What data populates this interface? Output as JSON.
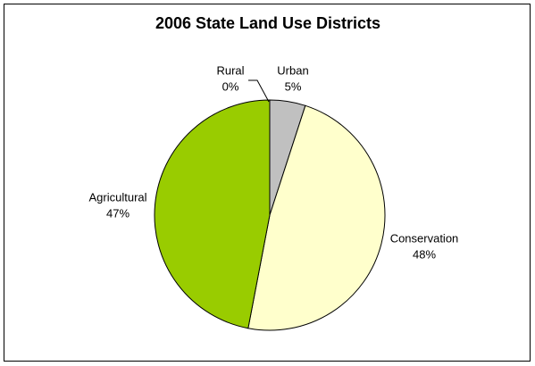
{
  "chart_data": {
    "type": "pie",
    "title": "2006 State Land Use Districts",
    "categories": [
      "Urban",
      "Conservation",
      "Agricultural",
      "Rural"
    ],
    "values": [
      5,
      48,
      47,
      0
    ],
    "value_labels": [
      "5%",
      "48%",
      "47%",
      "0%"
    ],
    "colors": [
      "#c0c0c0",
      "#ffffcc",
      "#99cc00",
      "#333333"
    ]
  }
}
